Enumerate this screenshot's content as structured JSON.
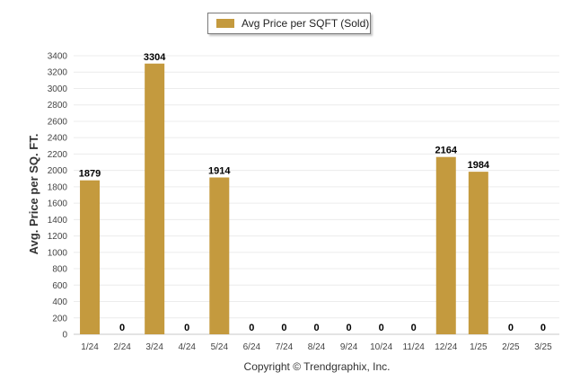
{
  "legend": {
    "label": "Avg Price per SQFT (Sold)",
    "color": "#c49a3e"
  },
  "footer": {
    "copyright": "Copyright © Trendgraphix, Inc."
  },
  "chart_data": {
    "type": "bar",
    "categories": [
      "1/24",
      "2/24",
      "3/24",
      "4/24",
      "5/24",
      "6/24",
      "7/24",
      "8/24",
      "9/24",
      "10/24",
      "11/24",
      "12/24",
      "1/25",
      "2/25",
      "3/25"
    ],
    "series": [
      {
        "name": "Avg Price per SQFT (Sold)",
        "values": [
          1879,
          0,
          3304,
          0,
          1914,
          0,
          0,
          0,
          0,
          0,
          0,
          2164,
          1984,
          0,
          0
        ]
      }
    ],
    "data_labels": [
      "1879",
      "0",
      "3304",
      "0",
      "1914",
      "0",
      "0",
      "0",
      "0",
      "0",
      "0",
      "2164",
      "1984",
      "0",
      "0"
    ],
    "ylabel": "Avg. Price per SQ. FT.",
    "ylim": [
      0,
      3400
    ],
    "yticks": [
      0,
      200,
      400,
      600,
      800,
      1000,
      1200,
      1400,
      1600,
      1800,
      2000,
      2200,
      2400,
      2600,
      2800,
      3000,
      3200,
      3400
    ],
    "grid": true,
    "legend_position": "top-center",
    "bar_color": "#c49a3e"
  }
}
